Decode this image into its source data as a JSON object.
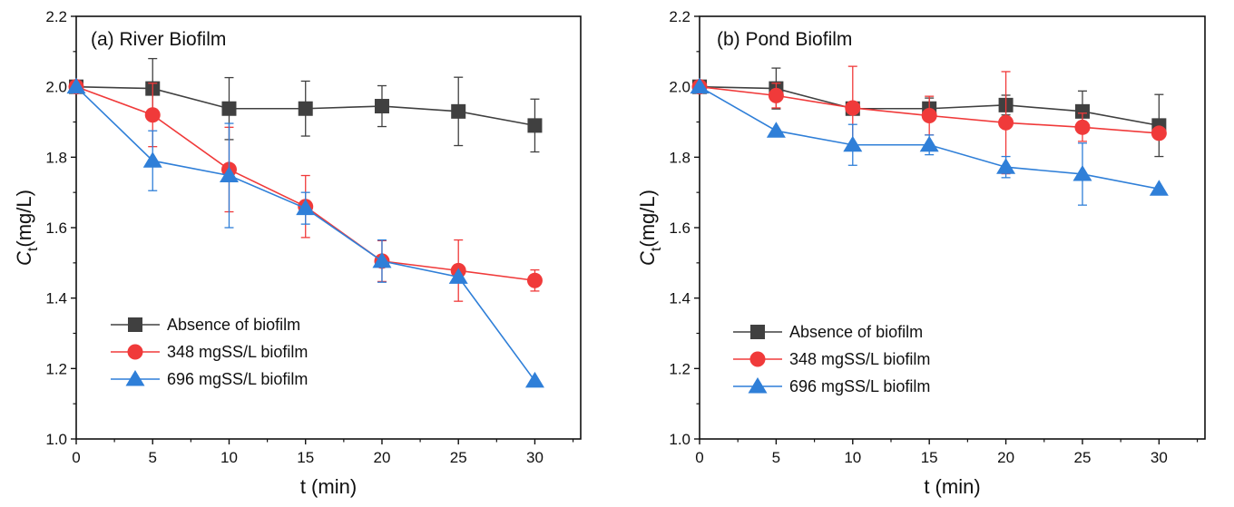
{
  "chart_data": [
    {
      "type": "line",
      "title": "(a) River Biofilm",
      "xlabel": "t (min)",
      "ylabel_main": "C",
      "ylabel_sub": "t",
      "ylabel_unit": "(mg/L)",
      "xlim": [
        0,
        33
      ],
      "ylim": [
        1.0,
        2.2
      ],
      "xticks": [
        0,
        5,
        10,
        15,
        20,
        25,
        30
      ],
      "yticks": [
        1.0,
        1.2,
        1.4,
        1.6,
        1.8,
        2.0,
        2.2
      ],
      "legend_position": "bottom-left",
      "series": [
        {
          "name": "Absence of biofilm",
          "color": "#404040",
          "marker": "square",
          "x": [
            0,
            5,
            10,
            15,
            20,
            25,
            30
          ],
          "y": [
            2.0,
            1.995,
            1.938,
            1.938,
            1.945,
            1.93,
            1.89
          ],
          "err": [
            0,
            0.085,
            0.088,
            0.078,
            0.058,
            0.097,
            0.075
          ]
        },
        {
          "name": "348 mgSS/L biofilm",
          "color": "#f03a3a",
          "marker": "circle",
          "x": [
            0,
            5,
            10,
            15,
            20,
            25,
            30
          ],
          "y": [
            2.0,
            1.92,
            1.765,
            1.66,
            1.505,
            1.478,
            1.45
          ],
          "err": [
            0,
            0.09,
            0.12,
            0.088,
            0.058,
            0.087,
            0.03
          ]
        },
        {
          "name": "696 mgSS/L biofilm",
          "color": "#2f7fd8",
          "marker": "triangle",
          "x": [
            0,
            5,
            10,
            15,
            20,
            25,
            30
          ],
          "y": [
            2.0,
            1.79,
            1.748,
            1.655,
            1.505,
            1.46,
            1.165
          ],
          "err": [
            0,
            0.085,
            0.148,
            0.045,
            0.06,
            0.0,
            0.0
          ]
        }
      ]
    },
    {
      "type": "line",
      "title": "(b) Pond Biofilm",
      "xlabel": "t (min)",
      "ylabel_main": "C",
      "ylabel_sub": "t",
      "ylabel_unit": "(mg/L)",
      "xlim": [
        0,
        33
      ],
      "ylim": [
        1.0,
        2.2
      ],
      "xticks": [
        0,
        5,
        10,
        15,
        20,
        25,
        30
      ],
      "yticks": [
        1.0,
        1.2,
        1.4,
        1.6,
        1.8,
        2.0,
        2.2
      ],
      "legend_position": "bottom-left",
      "series": [
        {
          "name": "Absence of biofilm",
          "color": "#404040",
          "marker": "square",
          "x": [
            0,
            5,
            10,
            15,
            20,
            25,
            30
          ],
          "y": [
            2.0,
            1.995,
            1.938,
            1.938,
            1.948,
            1.93,
            1.89
          ],
          "err": [
            0,
            0.058,
            0.018,
            0.03,
            0.028,
            0.058,
            0.088
          ]
        },
        {
          "name": "348 mgSS/L biofilm",
          "color": "#f03a3a",
          "marker": "circle",
          "x": [
            0,
            5,
            10,
            15,
            20,
            25,
            30
          ],
          "y": [
            2.0,
            1.975,
            1.94,
            1.918,
            1.898,
            1.885,
            1.868
          ],
          "err": [
            0,
            0.035,
            0.118,
            0.055,
            0.145,
            0.04,
            0.0
          ]
        },
        {
          "name": "696 mgSS/L biofilm",
          "color": "#2f7fd8",
          "marker": "triangle",
          "x": [
            0,
            5,
            10,
            15,
            20,
            25,
            30
          ],
          "y": [
            2.0,
            1.875,
            1.835,
            1.835,
            1.772,
            1.752,
            1.71
          ],
          "err": [
            0,
            0.0,
            0.058,
            0.028,
            0.03,
            0.088,
            0.0
          ]
        }
      ]
    }
  ]
}
